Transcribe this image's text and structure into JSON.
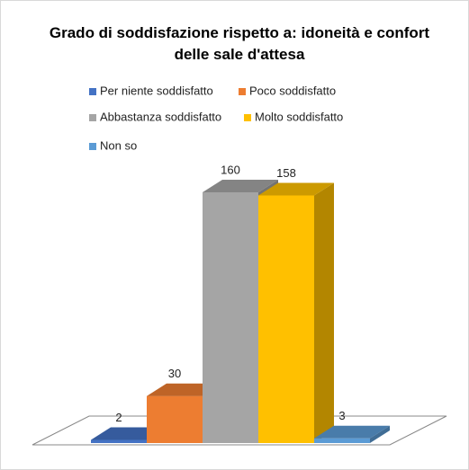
{
  "chart_data": {
    "type": "bar3d",
    "title": "Grado di soddisfazione rispetto a: idoneità e confort delle sale d'attesa",
    "series": [
      {
        "name": "Per niente soddisfatto",
        "color": "#4472c4",
        "values": [
          2
        ]
      },
      {
        "name": "Poco soddisfatto",
        "color": "#ed7d31",
        "values": [
          30
        ]
      },
      {
        "name": "Abbastanza soddisfatto",
        "color": "#a5a5a5",
        "values": [
          160
        ]
      },
      {
        "name": "Molto soddisfatto",
        "color": "#ffc000",
        "values": [
          158
        ]
      },
      {
        "name": "Non so",
        "color": "#5b9bd5",
        "values": [
          3
        ]
      }
    ]
  }
}
